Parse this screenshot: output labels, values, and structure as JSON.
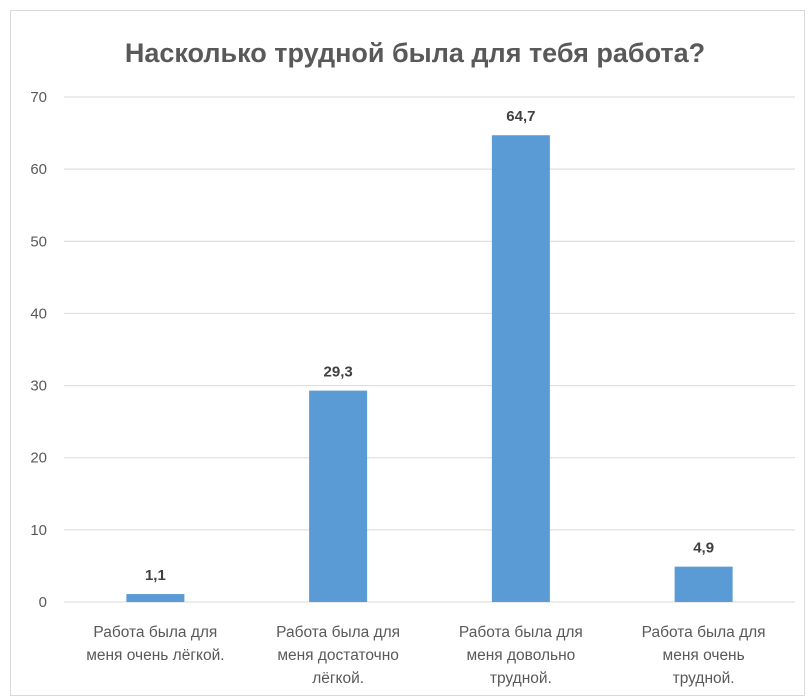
{
  "chart_data": {
    "type": "bar",
    "title": "Насколько трудной была для тебя работа?",
    "categories": [
      [
        "Работа была для",
        "меня очень лёгкой."
      ],
      [
        "Работа была для",
        "меня достаточно",
        "лёгкой."
      ],
      [
        "Работа была для",
        "меня довольно",
        "трудной."
      ],
      [
        "Работа была для",
        "меня очень",
        "трудной."
      ]
    ],
    "values": [
      1.1,
      29.3,
      64.7,
      4.9
    ],
    "value_labels": [
      "1,1",
      "29,3",
      "64,7",
      "4,9"
    ],
    "ylim": [
      0,
      70
    ],
    "yticks": [
      0,
      10,
      20,
      30,
      40,
      50,
      60,
      70
    ],
    "grid": true,
    "xlabel": "",
    "ylabel": "",
    "colors": {
      "bar": "#5b9bd5",
      "grid": "#d9d9d9",
      "text": "#595959"
    }
  }
}
